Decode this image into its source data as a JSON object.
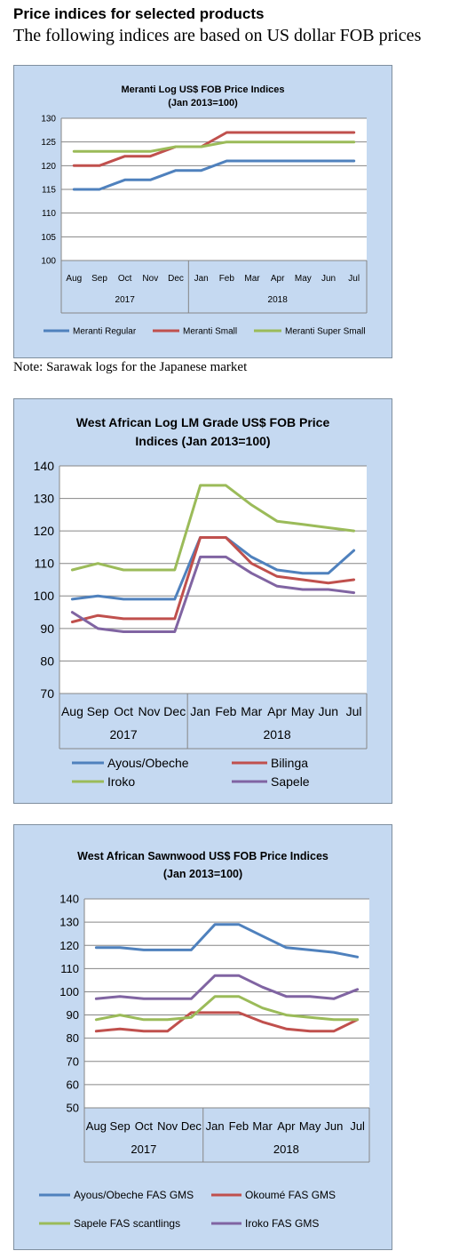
{
  "page": {
    "heading": "Price indices for selected products",
    "subheading": "The following indices are based on US dollar FOB prices",
    "note": "Note: Sarawak logs for the Japanese market"
  },
  "chart_data": [
    {
      "type": "line",
      "title": "Meranti Log US$ FOB Price Indices",
      "subtitle": "(Jan 2013=100)",
      "categories": [
        "Aug",
        "Sep",
        "Oct",
        "Nov",
        "Dec",
        "Jan",
        "Feb",
        "Mar",
        "Apr",
        "May",
        "Jun",
        "Jul"
      ],
      "year_groups": [
        {
          "label": "2017",
          "count": 5
        },
        {
          "label": "2018",
          "count": 7
        }
      ],
      "ylim": [
        100,
        130
      ],
      "yticks": [
        100,
        105,
        110,
        115,
        120,
        125,
        130
      ],
      "grid": "horizontal",
      "legend": "bottom",
      "series": [
        {
          "name": "Meranti Regular",
          "color": "#4f81bd",
          "values": [
            115,
            115,
            117,
            117,
            119,
            119,
            121,
            121,
            121,
            121,
            121,
            121
          ]
        },
        {
          "name": "Meranti Small",
          "color": "#c0504d",
          "values": [
            120,
            120,
            122,
            122,
            124,
            124,
            127,
            127,
            127,
            127,
            127,
            127
          ]
        },
        {
          "name": "Meranti Super Small",
          "color": "#9bbb59",
          "values": [
            123,
            123,
            123,
            123,
            124,
            124,
            125,
            125,
            125,
            125,
            125,
            125
          ]
        }
      ]
    },
    {
      "type": "line",
      "title": "West African Log LM Grade US$ FOB Price",
      "subtitle": "Indices (Jan 2013=100)",
      "categories": [
        "Aug",
        "Sep",
        "Oct",
        "Nov",
        "Dec",
        "Jan",
        "Feb",
        "Mar",
        "Apr",
        "May",
        "Jun",
        "Jul"
      ],
      "year_groups": [
        {
          "label": "2017",
          "count": 5
        },
        {
          "label": "2018",
          "count": 7
        }
      ],
      "ylim": [
        70,
        140
      ],
      "yticks": [
        70,
        80,
        90,
        100,
        110,
        120,
        130,
        140
      ],
      "grid": "horizontal",
      "legend": "bottom",
      "series": [
        {
          "name": "Ayous/Obeche",
          "color": "#4f81bd",
          "values": [
            99,
            100,
            99,
            99,
            99,
            118,
            118,
            112,
            108,
            107,
            107,
            114
          ]
        },
        {
          "name": "Bilinga",
          "color": "#c0504d",
          "values": [
            92,
            94,
            93,
            93,
            93,
            118,
            118,
            110,
            106,
            105,
            104,
            105
          ]
        },
        {
          "name": "Iroko",
          "color": "#9bbb59",
          "values": [
            108,
            110,
            108,
            108,
            108,
            134,
            134,
            128,
            123,
            122,
            121,
            120
          ]
        },
        {
          "name": "Sapele",
          "color": "#8064a2",
          "values": [
            95,
            90,
            89,
            89,
            89,
            112,
            112,
            107,
            103,
            102,
            102,
            101
          ]
        }
      ]
    },
    {
      "type": "line",
      "title": "West African Sawnwood US$ FOB Price Indices",
      "subtitle": "(Jan 2013=100)",
      "categories": [
        "Aug",
        "Sep",
        "Oct",
        "Nov",
        "Dec",
        "Jan",
        "Feb",
        "Mar",
        "Apr",
        "May",
        "Jun",
        "Jul"
      ],
      "year_groups": [
        {
          "label": "2017",
          "count": 5
        },
        {
          "label": "2018",
          "count": 7
        }
      ],
      "ylim": [
        50,
        140
      ],
      "yticks": [
        50,
        60,
        70,
        80,
        90,
        100,
        110,
        120,
        130,
        140
      ],
      "grid": "horizontal",
      "legend": "bottom",
      "series": [
        {
          "name": "Ayous/Obeche  FAS GMS",
          "color": "#4f81bd",
          "values": [
            119,
            119,
            118,
            118,
            118,
            129,
            129,
            124,
            119,
            118,
            117,
            115
          ]
        },
        {
          "name": "Okoumé  FAS GMS",
          "color": "#c0504d",
          "values": [
            83,
            84,
            83,
            83,
            91,
            91,
            91,
            87,
            84,
            83,
            83,
            88
          ]
        },
        {
          "name": "Sapele  FAS scantlings",
          "color": "#9bbb59",
          "values": [
            88,
            90,
            88,
            88,
            89,
            98,
            98,
            93,
            90,
            89,
            88,
            88
          ]
        },
        {
          "name": "Iroko  FAS GMS",
          "color": "#8064a2",
          "values": [
            97,
            98,
            97,
            97,
            97,
            107,
            107,
            102,
            98,
            98,
            97,
            101
          ]
        }
      ]
    }
  ]
}
